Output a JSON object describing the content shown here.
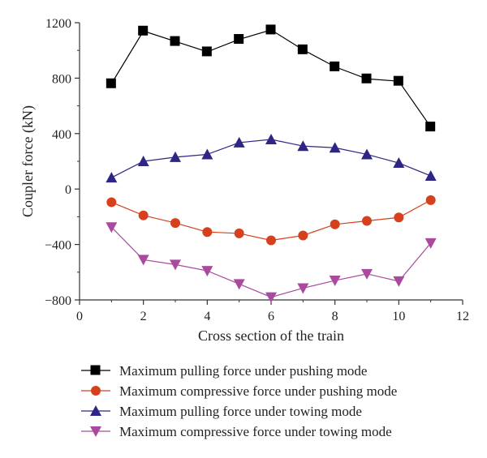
{
  "chart_data": {
    "type": "line",
    "xlabel": "Cross section of the train",
    "ylabel": "Coupler force (kN)",
    "xlim": [
      0,
      12
    ],
    "ylim": [
      -800,
      1200
    ],
    "xticks": [
      0,
      2,
      4,
      6,
      8,
      10,
      12
    ],
    "yticks": [
      -800,
      -400,
      0,
      400,
      800,
      1200
    ],
    "grid": false,
    "legend_position": "bottom",
    "x": [
      1,
      2,
      3,
      4,
      5,
      6,
      7,
      8,
      9,
      10,
      11
    ],
    "series": [
      {
        "name": "Maximum pulling force under pushing mode",
        "color": "#000000",
        "marker": "square",
        "values": [
          760,
          1140,
          1065,
          990,
          1080,
          1148,
          1005,
          882,
          795,
          778,
          448
        ]
      },
      {
        "name": "Maximum compressive force under pushing mode",
        "color": "#d7401c",
        "marker": "circle",
        "values": [
          -95,
          -190,
          -245,
          -310,
          -320,
          -370,
          -335,
          -255,
          -230,
          -205,
          -80
        ]
      },
      {
        "name": "Maximum pulling force under towing mode",
        "color": "#2e2585",
        "marker": "triangle-up",
        "values": [
          82,
          200,
          230,
          250,
          335,
          358,
          310,
          298,
          250,
          188,
          95
        ]
      },
      {
        "name": "Maximum compressive force under towing mode",
        "color": "#a94a9e",
        "marker": "triangle-down",
        "values": [
          -275,
          -510,
          -545,
          -590,
          -685,
          -780,
          -715,
          -660,
          -612,
          -665,
          -390
        ]
      }
    ]
  }
}
